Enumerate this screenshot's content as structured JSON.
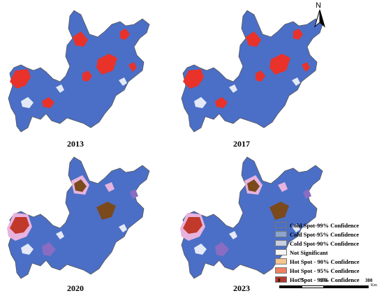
{
  "panels": [
    {
      "year": "2013",
      "scheme": "early"
    },
    {
      "year": "2017",
      "scheme": "early"
    },
    {
      "year": "2020",
      "scheme": "late"
    },
    {
      "year": "2023",
      "scheme": "late"
    }
  ],
  "north": {
    "letter": "N"
  },
  "legend": {
    "items": [
      {
        "label": "Cold Spot-99% Confidence",
        "color": "#4b6fc6"
      },
      {
        "label": "Cold Spot-95% Confidence",
        "color": "#8da4cc"
      },
      {
        "label": "Cold Spot-90% Confidence",
        "color": "#c6d0e0"
      },
      {
        "label": "Not Significant",
        "color": "#f5f5f5"
      },
      {
        "label": "Hot Spot - 90% Confidence",
        "color": "#f5c58e"
      },
      {
        "label": "Hot Spot - 95% Confidence",
        "color": "#ee8060"
      },
      {
        "label": "Hot Spot - 99% Confidence",
        "color": "#b03a2e"
      }
    ]
  },
  "scale": {
    "ticks": [
      "0",
      "75",
      "150",
      "300"
    ],
    "unit": "Km"
  },
  "colors": {
    "cold99": "#4b6fc6",
    "hot": "#e8322a",
    "late_hot": "#c0392b",
    "late_brown": "#7a4a1c",
    "late_pink": "#e7b3de",
    "late_purple": "#8a6cc2"
  }
}
